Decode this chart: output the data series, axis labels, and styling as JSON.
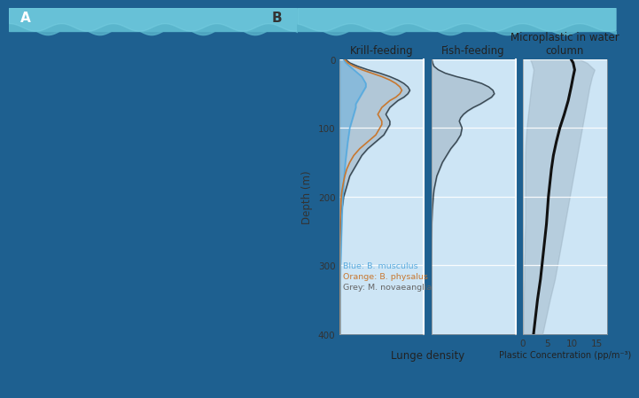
{
  "ocean_bg": "#1e6090",
  "ocean_bg2": "#1a5580",
  "panel_bg": "#cde5f5",
  "wave_top_color": "#5ab5cc",
  "teal_strip": "#3a9ab5",
  "col1_title": "Krill-feeding",
  "col2_title": "Fish-feeding",
  "col3_title": "Microplastic in water\ncolumn",
  "xlabel_left": "Lunge density",
  "xlabel_right": "Plastic Concentration (pp/m⁻³)",
  "ylabel": "Depth (m)",
  "yticks": [
    0,
    100,
    200,
    300,
    400
  ],
  "plastic_xticks": [
    0,
    5,
    10,
    15
  ],
  "legend_blue": "Blue: B. musculus",
  "legend_orange": "Orange: B. physalus",
  "legend_grey": "Grey: M. novaeangliae",
  "blue_color": "#5aabde",
  "orange_color": "#c87830",
  "grey_fill_color": "#9ab0c0",
  "grey_line_color": "#3a4a55",
  "black_color": "#111111",
  "fill_grey_alpha": 0.55,
  "fill_blue_alpha": 0.45,
  "krill_depth": [
    0,
    5,
    10,
    15,
    20,
    25,
    30,
    35,
    40,
    45,
    50,
    55,
    60,
    65,
    70,
    75,
    80,
    85,
    90,
    95,
    100,
    110,
    120,
    130,
    140,
    150,
    160,
    170,
    180,
    190,
    200,
    220,
    240,
    260,
    280,
    300,
    320,
    340,
    360,
    380,
    400
  ],
  "krill_grey": [
    0.3,
    0.5,
    0.9,
    1.4,
    2.0,
    2.5,
    2.9,
    3.2,
    3.4,
    3.5,
    3.4,
    3.2,
    2.9,
    2.7,
    2.5,
    2.4,
    2.3,
    2.4,
    2.5,
    2.5,
    2.4,
    2.2,
    1.8,
    1.4,
    1.1,
    0.9,
    0.7,
    0.5,
    0.4,
    0.3,
    0.2,
    0.1,
    0.05,
    0.02,
    0.01,
    0.0,
    0.0,
    0.0,
    0.0,
    0.0,
    0.0
  ],
  "krill_blue": [
    0.2,
    0.3,
    0.5,
    0.7,
    0.9,
    1.1,
    1.2,
    1.3,
    1.3,
    1.2,
    1.1,
    1.0,
    0.9,
    0.8,
    0.8,
    0.75,
    0.7,
    0.65,
    0.6,
    0.55,
    0.5,
    0.45,
    0.4,
    0.36,
    0.32,
    0.28,
    0.25,
    0.22,
    0.2,
    0.18,
    0.16,
    0.12,
    0.1,
    0.08,
    0.06,
    0.04,
    0.02,
    0.01,
    0.0,
    0.0,
    0.0
  ],
  "krill_orange": [
    0.25,
    0.4,
    0.7,
    1.1,
    1.6,
    2.1,
    2.5,
    2.8,
    3.0,
    3.1,
    3.0,
    2.8,
    2.5,
    2.3,
    2.1,
    2.0,
    1.9,
    2.0,
    2.1,
    2.1,
    2.0,
    1.8,
    1.4,
    1.0,
    0.7,
    0.5,
    0.35,
    0.25,
    0.18,
    0.12,
    0.08,
    0.04,
    0.02,
    0.01,
    0.0,
    0.0,
    0.0,
    0.0,
    0.0,
    0.0,
    0.0
  ],
  "fish_depth": [
    0,
    5,
    10,
    15,
    20,
    25,
    30,
    35,
    40,
    45,
    50,
    55,
    60,
    65,
    70,
    75,
    80,
    85,
    90,
    95,
    100,
    110,
    120,
    130,
    140,
    150,
    160,
    170,
    180,
    190,
    200,
    220,
    240,
    260,
    280,
    300,
    320,
    340,
    360,
    380,
    400
  ],
  "fish_grey": [
    0.05,
    0.1,
    0.2,
    0.5,
    1.0,
    1.8,
    2.8,
    3.6,
    4.1,
    4.4,
    4.5,
    4.3,
    3.9,
    3.5,
    3.0,
    2.6,
    2.3,
    2.1,
    2.0,
    2.1,
    2.2,
    2.1,
    1.8,
    1.4,
    1.1,
    0.8,
    0.6,
    0.4,
    0.3,
    0.2,
    0.15,
    0.08,
    0.04,
    0.02,
    0.01,
    0.0,
    0.0,
    0.0,
    0.0,
    0.0,
    0.0
  ],
  "plastic_depth": [
    0,
    5,
    15,
    25,
    40,
    60,
    80,
    100,
    120,
    140,
    160,
    180,
    200,
    220,
    240,
    260,
    280,
    300,
    320,
    350,
    400
  ],
  "plastic_mean": [
    9.8,
    10.2,
    10.5,
    10.2,
    9.8,
    9.2,
    8.4,
    7.5,
    6.8,
    6.2,
    5.8,
    5.5,
    5.2,
    5.0,
    4.8,
    4.5,
    4.2,
    3.9,
    3.6,
    3.0,
    2.2
  ],
  "plastic_low": [
    1.5,
    1.8,
    2.2,
    2.0,
    1.7,
    1.4,
    1.1,
    0.8,
    0.6,
    0.5,
    0.5,
    0.5,
    0.5,
    0.5,
    0.5,
    0.4,
    0.4,
    0.3,
    0.3,
    0.2,
    0.1
  ],
  "plastic_high": [
    11.5,
    13.0,
    14.5,
    14.0,
    13.5,
    13.0,
    12.5,
    12.0,
    11.5,
    11.0,
    10.5,
    10.0,
    9.5,
    9.0,
    8.5,
    8.0,
    7.5,
    7.0,
    6.5,
    5.5,
    4.0
  ]
}
